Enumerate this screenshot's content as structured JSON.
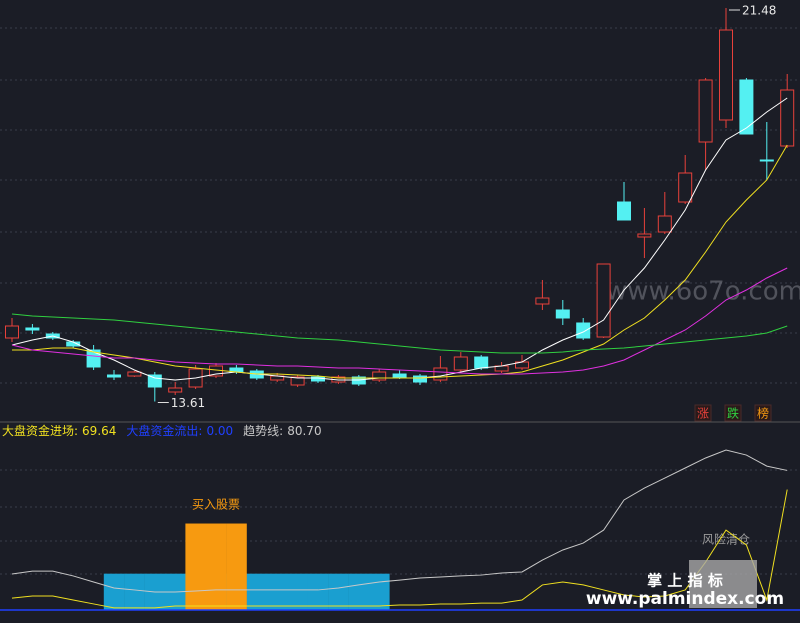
{
  "chart_data": [
    {
      "type": "candlestick",
      "open": [
        14.88,
        15.08,
        14.96,
        14.8,
        14.64,
        14.14,
        14.12,
        14.14,
        13.8,
        13.9,
        14.12,
        14.28,
        14.22,
        14.04,
        13.94,
        14.1,
        14.0,
        14.1,
        14.04,
        14.16,
        14.12,
        14.04,
        14.24,
        14.5,
        14.22,
        14.28,
        15.56,
        15.44,
        15.18,
        14.9,
        17.6,
        16.9,
        17.0,
        17.6,
        18.8,
        19.24,
        20.04,
        18.44,
        18.72
      ],
      "high": [
        15.28,
        15.16,
        15.0,
        14.84,
        14.74,
        14.24,
        14.22,
        14.2,
        14.0,
        14.34,
        14.38,
        14.34,
        14.26,
        14.18,
        14.14,
        14.14,
        14.14,
        14.14,
        14.26,
        14.24,
        14.16,
        14.52,
        14.6,
        14.54,
        14.4,
        14.54,
        16.04,
        15.64,
        15.28,
        16.36,
        18.0,
        17.48,
        17.8,
        18.54,
        20.08,
        21.48,
        20.08,
        19.2,
        20.16
      ],
      "low": [
        14.8,
        14.96,
        14.84,
        14.68,
        14.24,
        14.04,
        14.1,
        13.61,
        13.74,
        13.86,
        14.08,
        14.16,
        14.04,
        14.0,
        13.9,
        13.98,
        13.96,
        13.92,
        14.0,
        14.06,
        13.94,
        14.0,
        14.2,
        14.24,
        14.18,
        14.24,
        15.44,
        15.14,
        14.84,
        14.88,
        17.24,
        16.48,
        16.96,
        17.56,
        18.24,
        19.08,
        18.96,
        18.04,
        18.68
      ],
      "close": [
        15.12,
        15.04,
        14.88,
        14.72,
        14.3,
        14.1,
        14.2,
        13.9,
        13.88,
        14.26,
        14.32,
        14.2,
        14.08,
        14.12,
        14.1,
        14.02,
        14.1,
        13.96,
        14.2,
        14.1,
        14.0,
        14.28,
        14.5,
        14.28,
        14.32,
        14.4,
        15.68,
        15.28,
        14.88,
        16.36,
        17.24,
        16.96,
        17.32,
        18.18,
        20.04,
        21.04,
        18.96,
        18.42,
        19.84
      ],
      "up_color": "#e8413b",
      "down_color": "#54f0f2",
      "ylim": [
        13.2,
        21.64
      ],
      "series": [
        {
          "color": "#ffffff",
          "values": [
            14.74,
            14.84,
            14.92,
            14.8,
            14.6,
            14.44,
            14.24,
            14.08,
            14.04,
            14.08,
            14.16,
            14.2,
            14.16,
            14.12,
            14.08,
            14.08,
            14.04,
            14.04,
            14.08,
            14.08,
            14.08,
            14.12,
            14.2,
            14.28,
            14.32,
            14.4,
            14.64,
            14.84,
            15.0,
            15.24,
            15.84,
            16.28,
            16.84,
            17.44,
            18.24,
            18.84,
            19.08,
            19.4,
            19.68
          ]
        },
        {
          "color": "#f0e020",
          "values": [
            14.64,
            14.64,
            14.68,
            14.68,
            14.6,
            14.54,
            14.48,
            14.4,
            14.32,
            14.28,
            14.24,
            14.2,
            14.16,
            14.16,
            14.14,
            14.12,
            14.08,
            14.08,
            14.08,
            14.08,
            14.08,
            14.1,
            14.12,
            14.14,
            14.16,
            14.2,
            14.32,
            14.44,
            14.6,
            14.76,
            15.04,
            15.28,
            15.64,
            16.04,
            16.6,
            17.2,
            17.64,
            18.04,
            18.74
          ]
        },
        {
          "color": "#e030e0",
          "values": [
            14.74,
            14.64,
            14.6,
            14.56,
            14.52,
            14.48,
            14.48,
            14.44,
            14.4,
            14.38,
            14.36,
            14.36,
            14.34,
            14.32,
            14.32,
            14.3,
            14.28,
            14.28,
            14.26,
            14.24,
            14.22,
            14.2,
            14.18,
            14.16,
            14.16,
            14.16,
            14.18,
            14.2,
            14.24,
            14.32,
            14.44,
            14.64,
            14.84,
            15.04,
            15.32,
            15.64,
            15.84,
            16.08,
            16.28
          ]
        },
        {
          "color": "#30d040",
          "values": [
            15.36,
            15.32,
            15.3,
            15.28,
            15.26,
            15.24,
            15.2,
            15.16,
            15.12,
            15.08,
            15.04,
            15.0,
            14.96,
            14.92,
            14.88,
            14.86,
            14.84,
            14.8,
            14.76,
            14.72,
            14.68,
            14.64,
            14.62,
            14.6,
            14.58,
            14.58,
            14.58,
            14.6,
            14.64,
            14.66,
            14.68,
            14.72,
            14.76,
            14.8,
            14.84,
            14.88,
            14.92,
            14.98,
            15.12
          ]
        }
      ],
      "watermark": "www.6o7o.com",
      "buttons": [
        "涨",
        "跌",
        "榜"
      ]
    },
    {
      "type": "line",
      "ylim": [
        0,
        108.7
      ],
      "legend": [
        {
          "label": "大盘资金进场:",
          "value": 69.64,
          "color": "#f0e020"
        },
        {
          "label": "大盘资金流出:",
          "value": 0,
          "value_label": "0.00",
          "color": "#2040ff"
        },
        {
          "label": "趋势线:",
          "value": 80.7,
          "value_label": "80.70",
          "color": "#c8c8c8"
        }
      ],
      "series": [
        {
          "color": "#c8c8c8",
          "values": [
            20.8,
            22.5,
            22.5,
            19.7,
            16.2,
            12.7,
            11.6,
            10.4,
            10.4,
            11.0,
            11.6,
            11.6,
            11.6,
            11.6,
            11.6,
            11.6,
            12.7,
            14.5,
            16.2,
            17.3,
            18.5,
            19.1,
            19.7,
            20.2,
            21.4,
            22.0,
            28.9,
            34.7,
            38.7,
            46.2,
            63.6,
            70.5,
            76.3,
            82.1,
            87.9,
            92.5,
            89.6,
            83.2,
            80.7
          ]
        },
        {
          "color": "#f0e020",
          "values": [
            6.9,
            8.1,
            8.1,
            5.8,
            3.5,
            1.2,
            1.2,
            1.2,
            2.3,
            2.3,
            2.3,
            2.3,
            2.3,
            2.3,
            2.3,
            2.3,
            2.3,
            2.3,
            2.3,
            2.9,
            2.9,
            3.5,
            3.5,
            4.0,
            4.0,
            5.8,
            14.5,
            16.2,
            14.5,
            11.6,
            8.7,
            7.5,
            8.1,
            11.6,
            27.7,
            46.2,
            37.6,
            5.8,
            69.64
          ]
        }
      ],
      "bars": [
        {
          "color": "#1a9fd0",
          "values": [
            null,
            null,
            null,
            null,
            null,
            21,
            21,
            21,
            21,
            21,
            21,
            21,
            21,
            21,
            21,
            21,
            21,
            21,
            21,
            null,
            null,
            null,
            null,
            null,
            null,
            null,
            null,
            null,
            null,
            null,
            null,
            null,
            null,
            null,
            null,
            null,
            null,
            null,
            null
          ]
        },
        {
          "color": "#f79a10",
          "values": [
            null,
            null,
            null,
            null,
            null,
            null,
            null,
            null,
            null,
            50,
            50,
            50,
            null,
            null,
            null,
            null,
            null,
            null,
            null,
            null,
            null,
            null,
            null,
            null,
            null,
            null,
            null,
            null,
            null,
            null,
            null,
            null,
            null,
            null,
            null,
            null,
            null,
            null,
            null
          ]
        }
      ],
      "buy_label": "买入股票",
      "sell_label": "风险清仓",
      "watermark_title": "掌 上 指 标",
      "watermark_url": "www.palmindex.com"
    }
  ]
}
